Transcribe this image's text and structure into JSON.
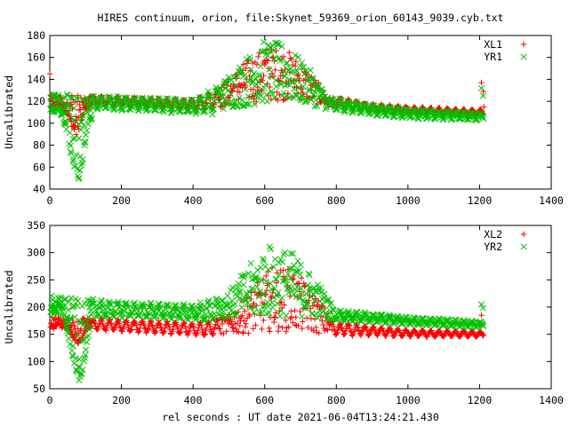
{
  "title": "HIRES continuum, orion, file:Skynet_59369_orion_60143_9039.cyb.txt",
  "xlabel": "rel seconds : UT date 2021-06-04T13:24:21.430",
  "colors": {
    "series1": "#ff0000",
    "series2": "#00c000"
  },
  "chart_data": [
    {
      "type": "scatter",
      "title": "HIRES continuum, orion, file:Skynet_59369_orion_60143_9039.cyb.txt",
      "xlabel": "",
      "ylabel": "Uncalibrated",
      "xlim": [
        0,
        1400
      ],
      "ylim": [
        40,
        180
      ],
      "xticks": [
        0,
        200,
        400,
        600,
        800,
        1000,
        1200,
        1400
      ],
      "yticks": [
        40,
        60,
        80,
        100,
        120,
        140,
        160,
        180
      ],
      "legend_position": "top-right",
      "grid": false,
      "series": [
        {
          "name": "XL1",
          "marker": "plus",
          "color": "#ff0000",
          "baseline": [
            [
              0,
              122
            ],
            [
              200,
              120
            ],
            [
              400,
              117
            ],
            [
              480,
              123
            ],
            [
              540,
              134
            ],
            [
              600,
              147
            ],
            [
              660,
              148
            ],
            [
              720,
              137
            ],
            [
              780,
              120
            ],
            [
              900,
              114
            ],
            [
              1000,
              112
            ],
            [
              1200,
              110
            ]
          ],
          "upper": [
            [
              0,
              126
            ],
            [
              200,
              124
            ],
            [
              400,
              122
            ],
            [
              480,
              135
            ],
            [
              540,
              155
            ],
            [
              600,
              170
            ],
            [
              660,
              168
            ],
            [
              720,
              150
            ],
            [
              780,
              124
            ],
            [
              900,
              117
            ],
            [
              1000,
              115
            ],
            [
              1200,
              112
            ]
          ],
          "lower": [
            [
              0,
              117
            ],
            [
              200,
              116
            ],
            [
              400,
              113
            ],
            [
              480,
              114
            ],
            [
              540,
              118
            ],
            [
              600,
              120
            ],
            [
              660,
              121
            ],
            [
              720,
              120
            ],
            [
              780,
              114
            ],
            [
              900,
              110
            ],
            [
              1000,
              108
            ],
            [
              1200,
              107
            ]
          ],
          "dip": [
            [
              30,
              115
            ],
            [
              50,
              108
            ],
            [
              65,
              96
            ],
            [
              75,
              92
            ],
            [
              85,
              100
            ],
            [
              95,
              112
            ],
            [
              110,
              116
            ]
          ],
          "outliers": [
            [
              0,
              145
            ],
            [
              1205,
              137
            ],
            [
              1210,
              129
            ],
            [
              1212,
              115
            ]
          ]
        },
        {
          "name": "YR1",
          "marker": "x",
          "color": "#00c000",
          "baseline": [
            [
              0,
              120
            ],
            [
              200,
              118
            ],
            [
              400,
              115
            ],
            [
              480,
              122
            ],
            [
              540,
              134
            ],
            [
              600,
              150
            ],
            [
              660,
              150
            ],
            [
              720,
              138
            ],
            [
              780,
              118
            ],
            [
              900,
              112
            ],
            [
              1000,
              109
            ],
            [
              1200,
              106
            ]
          ],
          "upper": [
            [
              0,
              127
            ],
            [
              200,
              125
            ],
            [
              400,
              123
            ],
            [
              480,
              138
            ],
            [
              540,
              158
            ],
            [
              600,
              176
            ],
            [
              660,
              172
            ],
            [
              720,
              152
            ],
            [
              780,
              124
            ],
            [
              900,
              116
            ],
            [
              1000,
              114
            ],
            [
              1200,
              110
            ]
          ],
          "lower": [
            [
              0,
              114
            ],
            [
              200,
              113
            ],
            [
              400,
              110
            ],
            [
              480,
              112
            ],
            [
              540,
              115
            ],
            [
              600,
              118
            ],
            [
              660,
              119
            ],
            [
              720,
              117
            ],
            [
              780,
              112
            ],
            [
              900,
              107
            ],
            [
              1000,
              105
            ],
            [
              1200,
              103
            ]
          ],
          "dip": [
            [
              30,
              112
            ],
            [
              45,
              98
            ],
            [
              60,
              72
            ],
            [
              72,
              58
            ],
            [
              80,
              50
            ],
            [
              90,
              62
            ],
            [
              100,
              88
            ],
            [
              110,
              104
            ]
          ],
          "outliers": [
            [
              1205,
              132
            ],
            [
              1210,
              125
            ]
          ]
        }
      ]
    },
    {
      "type": "scatter",
      "title": "",
      "xlabel": "rel seconds : UT date 2021-06-04T13:24:21.430",
      "ylabel": "Uncalibrated",
      "xlim": [
        0,
        1400
      ],
      "ylim": [
        50,
        350
      ],
      "xticks": [
        0,
        200,
        400,
        600,
        800,
        1000,
        1200,
        1400
      ],
      "yticks": [
        50,
        100,
        150,
        200,
        250,
        300,
        350
      ],
      "legend_position": "top-right",
      "grid": false,
      "series": [
        {
          "name": "XL2",
          "marker": "plus",
          "color": "#ff0000",
          "baseline": [
            [
              0,
              170
            ],
            [
              200,
              166
            ],
            [
              400,
              160
            ],
            [
              500,
              162
            ],
            [
              560,
              175
            ],
            [
              620,
              195
            ],
            [
              680,
              195
            ],
            [
              740,
              175
            ],
            [
              800,
              160
            ],
            [
              1000,
              152
            ],
            [
              1200,
              150
            ]
          ],
          "upper": [
            [
              0,
              182
            ],
            [
              200,
              178
            ],
            [
              400,
              172
            ],
            [
              500,
              185
            ],
            [
              560,
              230
            ],
            [
              620,
              275
            ],
            [
              680,
              270
            ],
            [
              740,
              225
            ],
            [
              800,
              170
            ],
            [
              1000,
              158
            ],
            [
              1200,
              155
            ]
          ],
          "lower": [
            [
              0,
              160
            ],
            [
              200,
              156
            ],
            [
              400,
              150
            ],
            [
              500,
              150
            ],
            [
              560,
              152
            ],
            [
              620,
              155
            ],
            [
              680,
              154
            ],
            [
              740,
              152
            ],
            [
              800,
              148
            ],
            [
              1000,
              145
            ],
            [
              1200,
              145
            ]
          ],
          "dip": [
            [
              30,
              168
            ],
            [
              50,
              160
            ],
            [
              65,
              145
            ],
            [
              78,
              135
            ],
            [
              88,
              142
            ],
            [
              100,
              158
            ],
            [
              115,
              165
            ]
          ],
          "outliers": [
            [
              1205,
              185
            ],
            [
              1210,
              150
            ]
          ]
        },
        {
          "name": "YR2",
          "marker": "x",
          "color": "#00c000",
          "baseline": [
            [
              0,
              200
            ],
            [
              200,
              195
            ],
            [
              400,
              190
            ],
            [
              500,
              198
            ],
            [
              560,
              220
            ],
            [
              620,
              245
            ],
            [
              680,
              240
            ],
            [
              740,
              215
            ],
            [
              800,
              185
            ],
            [
              1000,
              175
            ],
            [
              1200,
              168
            ]
          ],
          "upper": [
            [
              0,
              222
            ],
            [
              200,
              212
            ],
            [
              400,
              205
            ],
            [
              500,
              228
            ],
            [
              560,
              280
            ],
            [
              620,
              318
            ],
            [
              680,
              300
            ],
            [
              740,
              255
            ],
            [
              800,
              195
            ],
            [
              1000,
              182
            ],
            [
              1200,
              175
            ]
          ],
          "lower": [
            [
              0,
              185
            ],
            [
              200,
              182
            ],
            [
              400,
              178
            ],
            [
              500,
              180
            ],
            [
              560,
              180
            ],
            [
              620,
              182
            ],
            [
              680,
              182
            ],
            [
              740,
              180
            ],
            [
              800,
              175
            ],
            [
              1000,
              168
            ],
            [
              1200,
              163
            ]
          ],
          "dip": [
            [
              30,
              200
            ],
            [
              45,
              170
            ],
            [
              60,
              120
            ],
            [
              72,
              90
            ],
            [
              82,
              68
            ],
            [
              92,
              85
            ],
            [
              102,
              125
            ],
            [
              115,
              175
            ]
          ],
          "outliers": [
            [
              1205,
              205
            ],
            [
              1210,
              198
            ]
          ]
        }
      ]
    }
  ]
}
